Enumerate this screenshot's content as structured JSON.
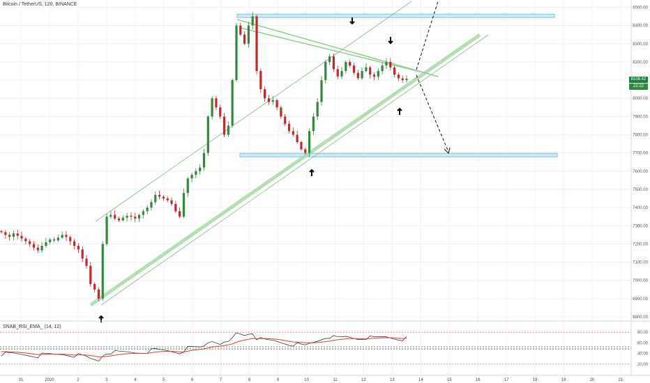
{
  "header": {
    "title": "Bitcoin / TetherUS, 120, BINANCE"
  },
  "oscillator": {
    "title": "SNAB_RSI_EMA_ (14, 12)"
  },
  "price_axis": {
    "ticks": [
      "8500.00",
      "8400.00",
      "8300.00",
      "8200.00",
      "8100.00",
      "8000.00",
      "7900.00",
      "7800.00",
      "7700.00",
      "7600.00",
      "7500.00",
      "7400.00",
      "7300.00",
      "7200.00",
      "7100.00",
      "7000.00",
      "6900.00",
      "6800.00"
    ],
    "last_price": "8108.42",
    "countdown": "22:22",
    "colors": {
      "last_price_bg": "#1e7d3a",
      "countdown_bg": "#2e8b3a"
    }
  },
  "osc_axis": {
    "ticks": [
      "80.00",
      "60.00",
      "40.00",
      "20.00"
    ]
  },
  "time_axis": {
    "labels": [
      "31",
      "2020",
      "2",
      "3",
      "4",
      "5",
      "6",
      "7",
      "8",
      "9",
      "10",
      "11",
      "12",
      "13",
      "14",
      "15",
      "16",
      "17",
      "18",
      "19",
      "20",
      "21"
    ]
  },
  "chart_data": {
    "type": "candlestick",
    "title": "Bitcoin / TetherUS, 120, BINANCE",
    "x_range": [
      "Dec 31",
      "Jan 21"
    ],
    "ylim": [
      6800,
      8540
    ],
    "last_price": 8108.42,
    "levels": {
      "resistance": 8455,
      "support": 7690
    },
    "colors": {
      "up": "#2e8b3a",
      "down": "#c62828",
      "zone": "#7ec8e3",
      "channel": "#8fcf8f",
      "rsi": "#222222",
      "ema": "#e53935"
    },
    "annotations": [
      "breakout up dashed projection",
      "breakdown dashed projection to 7690",
      "down arrows at resistance",
      "up arrows at support"
    ],
    "series_close": [
      7265,
      7250,
      7240,
      7258,
      7245,
      7230,
      7215,
      7200,
      7180,
      7165,
      7190,
      7210,
      7225,
      7220,
      7235,
      7250,
      7238,
      7215,
      7190,
      7170,
      7120,
      7080,
      6980,
      6950,
      6900,
      7200,
      7350,
      7360,
      7340,
      7330,
      7345,
      7355,
      7350,
      7340,
      7360,
      7380,
      7400,
      7430,
      7470,
      7460,
      7450,
      7440,
      7420,
      7380,
      7350,
      7480,
      7560,
      7580,
      7600,
      7620,
      7700,
      7900,
      8000,
      7950,
      7900,
      7800,
      7850,
      8100,
      8400,
      8350,
      8300,
      8400,
      8450,
      8150,
      8050,
      8000,
      7980,
      7990,
      7950,
      7900,
      7860,
      7820,
      7800,
      7760,
      7720,
      7700,
      7820,
      7900,
      7980,
      8100,
      8200,
      8230,
      8160,
      8120,
      8150,
      8200,
      8180,
      8140,
      8110,
      8150,
      8170,
      8130,
      8120,
      8150,
      8180,
      8200,
      8170,
      8130,
      8110,
      8100,
      8108
    ],
    "rsi": {
      "range": [
        0,
        100
      ],
      "bands": [
        80,
        53,
        50,
        48,
        20
      ],
      "last": 52
    }
  }
}
